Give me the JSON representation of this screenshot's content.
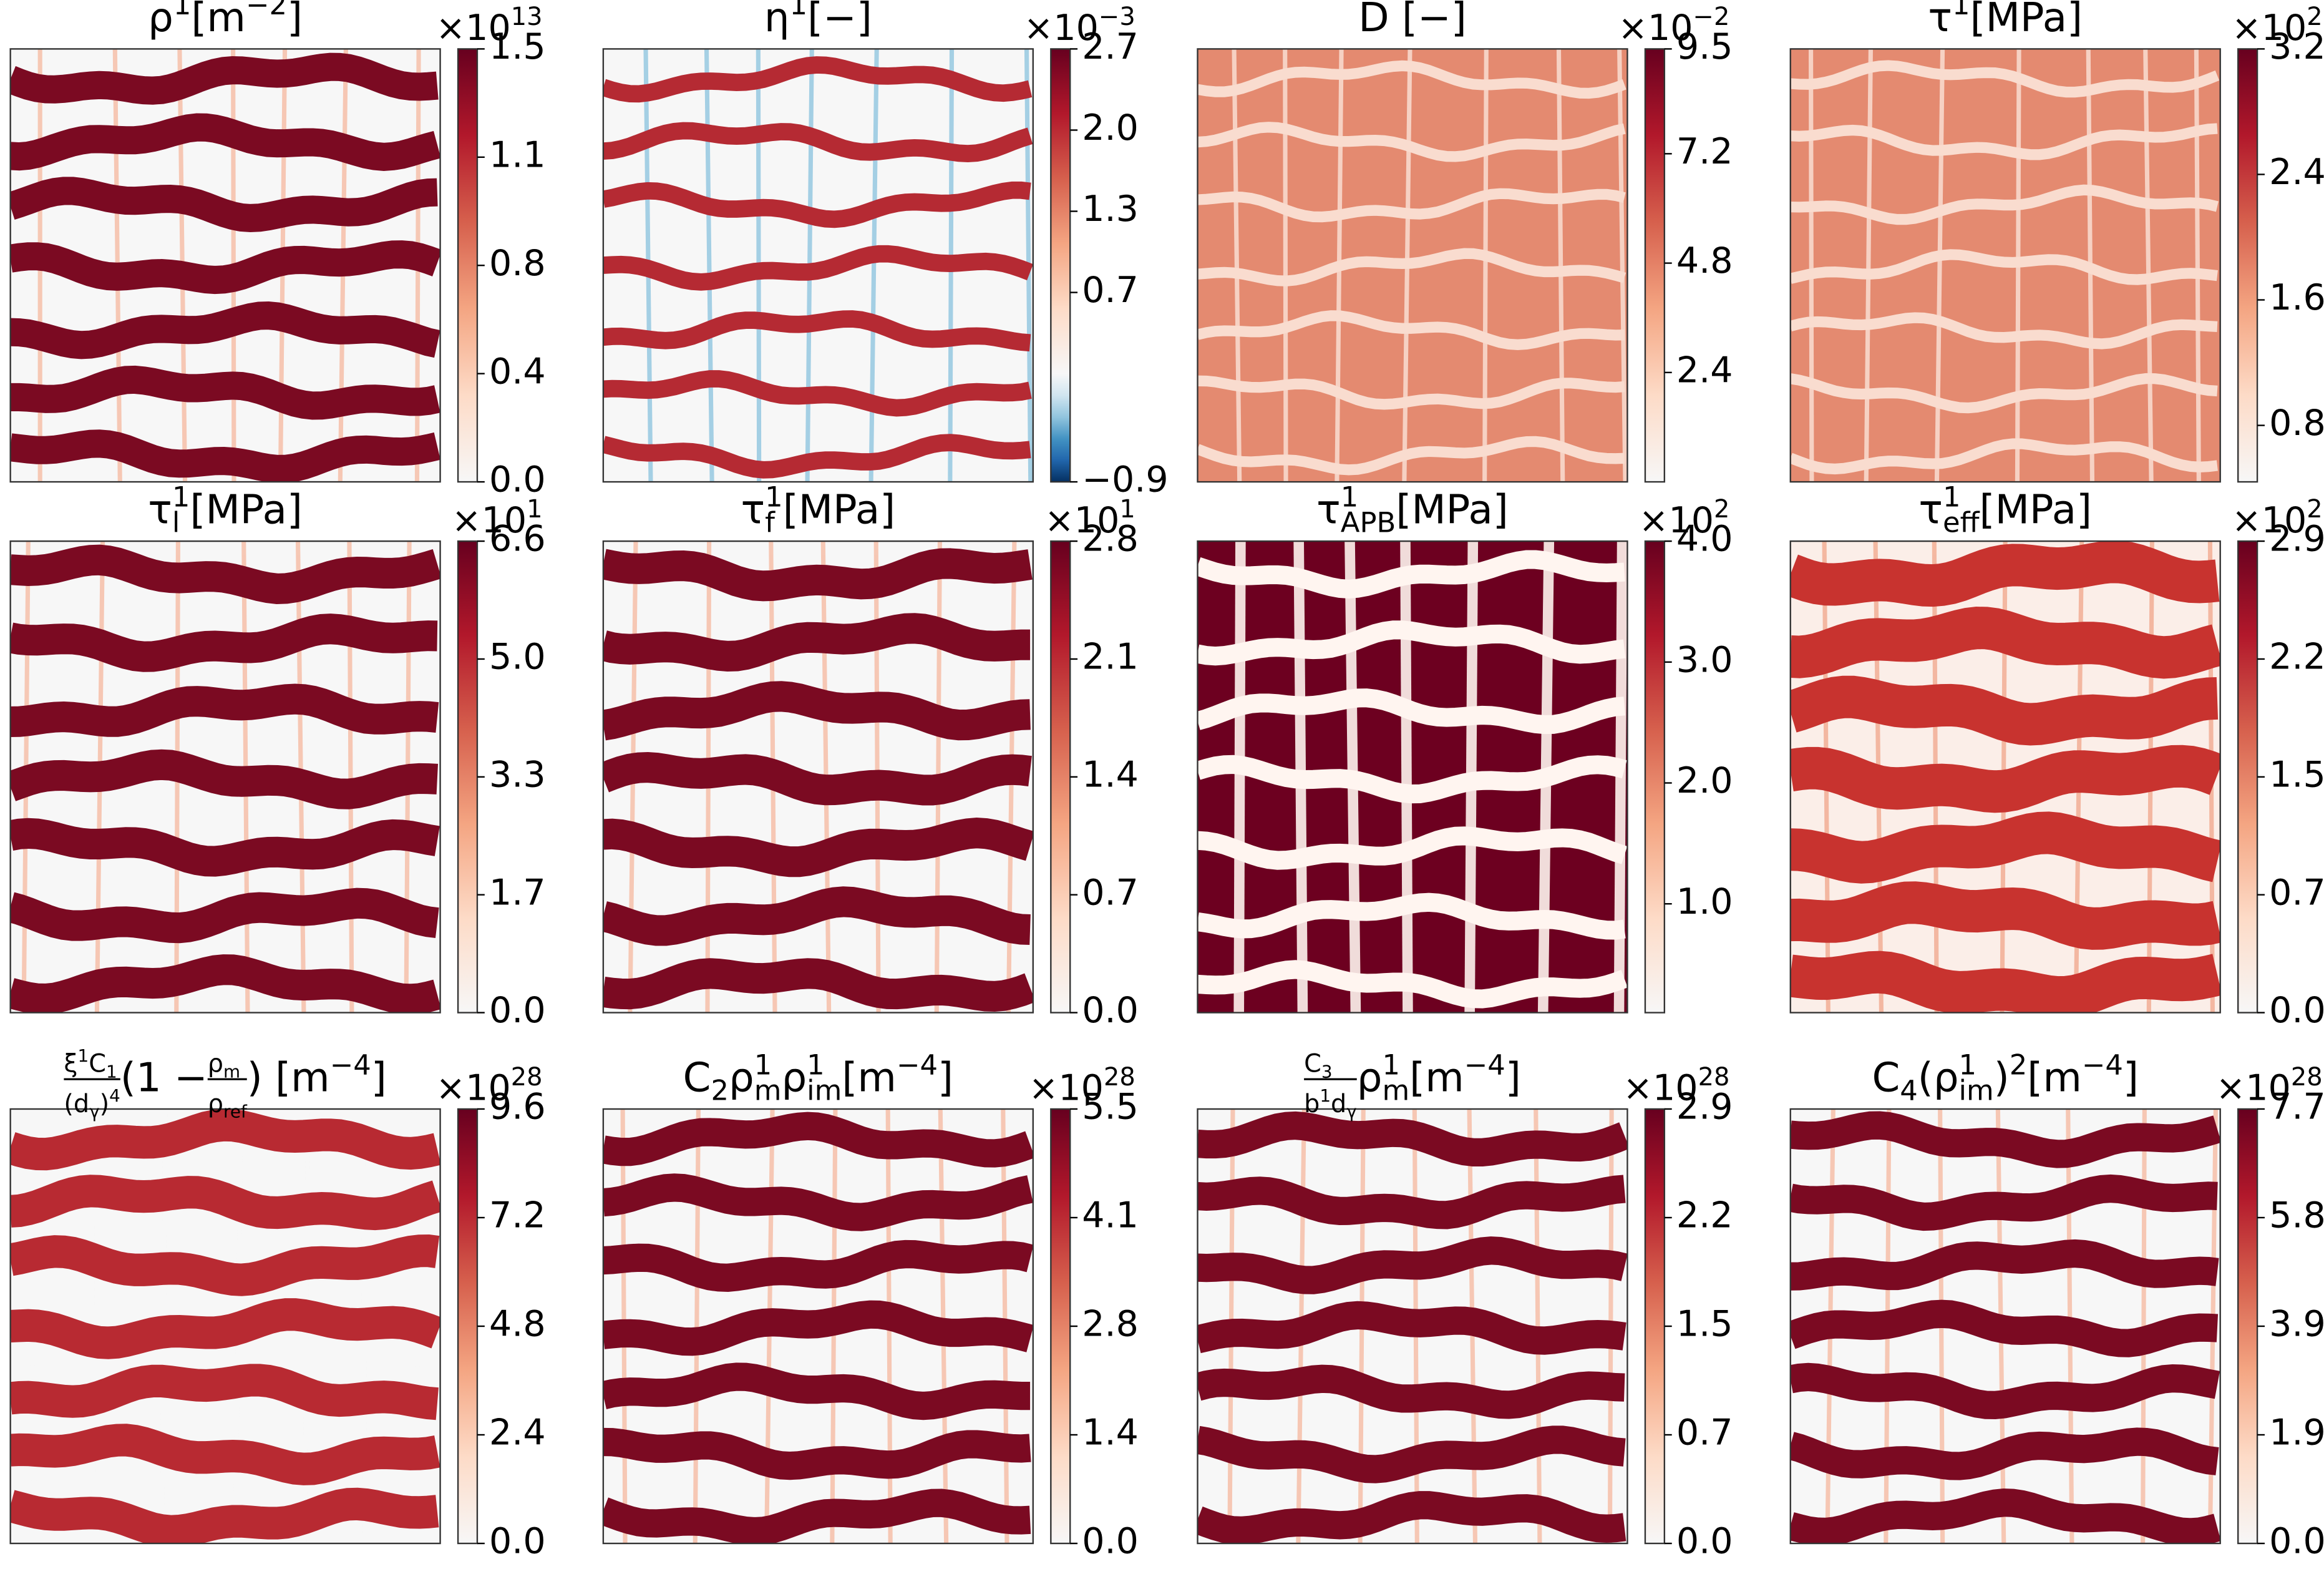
{
  "chart_data": [
    {
      "type": "heatmap",
      "colormap": "RdBu_r",
      "title": [
        {
          "text": "ρ"
        },
        {
          "text": "1",
          "pos": "sup"
        },
        {
          "text": " [m"
        },
        {
          "text": "−2",
          "pos": "sup"
        },
        {
          "text": "]"
        }
      ],
      "offset_text": [
        {
          "text": "×10"
        },
        {
          "text": "13",
          "pos": "sup"
        }
      ],
      "ylim": [
        0,
        1.5
      ],
      "yticks": [
        {
          "value": 0,
          "label": "0.0"
        },
        {
          "value": 0.375,
          "label": "0.4"
        },
        {
          "value": 0.75,
          "label": "0.8"
        },
        {
          "value": 1.125,
          "label": "1.1"
        },
        1.5
      ]
    },
    {
      "type": "heatmap",
      "colormap": "RdBu_r",
      "title": [
        {
          "text": "η"
        },
        {
          "text": "1",
          "pos": "sup"
        },
        {
          "text": " [−]"
        }
      ],
      "offset_text": [
        {
          "text": "×10"
        },
        {
          "text": "−3",
          "pos": "sup"
        }
      ],
      "ylim": [
        -0.9,
        2.7
      ],
      "yticks": [
        {
          "value": -0.9,
          "label": "−0.9"
        },
        {
          "value": 0.675,
          "label": "0.7"
        },
        {
          "value": 1.35,
          "label": "1.3"
        },
        {
          "value": 2.025,
          "label": "2.0"
        },
        2.7
      ]
    },
    {
      "type": "heatmap",
      "colormap": "RdBu_r",
      "title": [
        {
          "text": "D [−]"
        }
      ],
      "offset_text": [
        {
          "text": "×10"
        },
        {
          "text": "−2",
          "pos": "sup"
        }
      ],
      "ylim": [
        0,
        9.5
      ],
      "yticks": [
        2.4,
        4.8,
        7.2,
        9.5
      ]
    },
    {
      "type": "heatmap",
      "colormap": "RdBu_r",
      "title": [
        {
          "text": "τ"
        },
        {
          "text": "1",
          "pos": "sup"
        },
        {
          "text": " [MPa]"
        }
      ],
      "offset_text": [
        {
          "text": "×10"
        },
        {
          "text": "2",
          "pos": "sup"
        }
      ],
      "ylim": [
        0.44,
        3.2
      ],
      "yticks": [
        0.8,
        1.6,
        2.4,
        3.2
      ]
    },
    {
      "type": "heatmap",
      "colormap": "RdBu_r",
      "title": [
        {
          "text": "τ"
        },
        {
          "text": "1",
          "pos": "sup"
        },
        {
          "text": "l",
          "pos": "sub"
        },
        {
          "text": " [MPa]"
        }
      ],
      "offset_text": [
        {
          "text": "×10"
        },
        {
          "text": "1",
          "pos": "sup"
        }
      ],
      "ylim": [
        0,
        6.6
      ],
      "yticks": [
        {
          "value": 0,
          "label": "0.0"
        },
        {
          "value": 1.65,
          "label": "1.7"
        },
        3.3,
        {
          "value": 4.95,
          "label": "5.0"
        },
        6.6
      ]
    },
    {
      "type": "heatmap",
      "colormap": "RdBu_r",
      "title": [
        {
          "text": "τ"
        },
        {
          "text": "1",
          "pos": "sup"
        },
        {
          "text": "f",
          "pos": "sub"
        },
        {
          "text": " [MPa]"
        }
      ],
      "offset_text": [
        {
          "text": "×10"
        },
        {
          "text": "1",
          "pos": "sup"
        }
      ],
      "ylim": [
        0,
        2.8
      ],
      "yticks": [
        {
          "value": 0,
          "label": "0.0"
        },
        0.7,
        1.4,
        2.1,
        2.8
      ]
    },
    {
      "type": "heatmap",
      "colormap": "RdBu_r",
      "title": [
        {
          "text": "τ"
        },
        {
          "text": "1",
          "pos": "sup"
        },
        {
          "text": "APB",
          "pos": "sub"
        },
        {
          "text": " [MPa]"
        }
      ],
      "offset_text": [
        {
          "text": "×10"
        },
        {
          "text": "2",
          "pos": "sup"
        }
      ],
      "ylim": [
        0.1,
        4.0
      ],
      "yticks": [
        {
          "value": 1,
          "label": "1.0"
        },
        {
          "value": 2,
          "label": "2.0"
        },
        {
          "value": 3,
          "label": "3.0"
        },
        {
          "value": 4,
          "label": "4.0"
        }
      ]
    },
    {
      "type": "heatmap",
      "colormap": "RdBu_r",
      "title": [
        {
          "text": "τ"
        },
        {
          "text": "1",
          "pos": "sup"
        },
        {
          "text": "eff",
          "pos": "sub"
        },
        {
          "text": " [MPa]"
        }
      ],
      "offset_text": [
        {
          "text": "×10"
        },
        {
          "text": "2",
          "pos": "sup"
        }
      ],
      "ylim": [
        0,
        2.9
      ],
      "yticks": [
        {
          "value": 0,
          "label": "0.0"
        },
        {
          "value": 0.725,
          "label": "0.7"
        },
        {
          "value": 1.45,
          "label": "1.5"
        },
        {
          "value": 2.175,
          "label": "2.2"
        },
        2.9
      ]
    },
    {
      "type": "heatmap",
      "colormap": "RdBu_r",
      "title": [
        {
          "text": "ξ",
          "row": "num"
        },
        {
          "text": "1",
          "row": "num",
          "pos": "sup"
        },
        {
          "text": "C",
          "row": "num"
        },
        {
          "text": "1",
          "row": "num",
          "pos": "sub"
        },
        {
          "text": "(d",
          "row": "den"
        },
        {
          "text": "γ",
          "row": "den",
          "pos": "sub"
        },
        {
          "text": ")",
          "row": "den"
        },
        {
          "text": "4",
          "row": "den",
          "pos": "sup"
        },
        {
          "text": "(1 − "
        },
        {
          "text": "ρ",
          "row": "num"
        },
        {
          "text": "m",
          "row": "num",
          "pos": "sub"
        },
        {
          "text": "ρ",
          "row": "den"
        },
        {
          "text": "ref",
          "row": "den",
          "pos": "sub"
        },
        {
          "text": ") [m"
        },
        {
          "text": "−4",
          "pos": "sup"
        },
        {
          "text": "]"
        }
      ],
      "offset_text": [
        {
          "text": "×10"
        },
        {
          "text": "28",
          "pos": "sup"
        }
      ],
      "ylim": [
        0,
        9.6
      ],
      "yticks": [
        {
          "value": 0,
          "label": "0.0"
        },
        2.4,
        4.8,
        7.2,
        9.6
      ]
    },
    {
      "type": "heatmap",
      "colormap": "RdBu_r",
      "title": [
        {
          "text": "C"
        },
        {
          "text": "2",
          "pos": "sub"
        },
        {
          "text": "ρ"
        },
        {
          "text": "1",
          "pos": "sup"
        },
        {
          "text": "m",
          "pos": "sub"
        },
        {
          "text": "ρ"
        },
        {
          "text": "1",
          "pos": "sup"
        },
        {
          "text": "im",
          "pos": "sub"
        },
        {
          "text": " [m"
        },
        {
          "text": "−4",
          "pos": "sup"
        },
        {
          "text": "]"
        }
      ],
      "offset_text": [
        {
          "text": "×10"
        },
        {
          "text": "28",
          "pos": "sup"
        }
      ],
      "ylim": [
        0,
        5.5
      ],
      "yticks": [
        {
          "value": 0,
          "label": "0.0"
        },
        {
          "value": 1.375,
          "label": "1.4"
        },
        {
          "value": 2.75,
          "label": "2.8"
        },
        {
          "value": 4.125,
          "label": "4.1"
        },
        5.5
      ]
    },
    {
      "type": "heatmap",
      "colormap": "RdBu_r",
      "title": [
        {
          "text": "C",
          "row": "num"
        },
        {
          "text": "3",
          "row": "num",
          "pos": "sub"
        },
        {
          "text": "b",
          "row": "den"
        },
        {
          "text": "1",
          "row": "den",
          "pos": "sup"
        },
        {
          "text": "d",
          "row": "den"
        },
        {
          "text": "γ",
          "row": "den",
          "pos": "sub"
        },
        {
          "text": "ρ"
        },
        {
          "text": "1",
          "pos": "sup"
        },
        {
          "text": "m",
          "pos": "sub"
        },
        {
          "text": " [m"
        },
        {
          "text": "−4",
          "pos": "sup"
        },
        {
          "text": "]"
        }
      ],
      "offset_text": [
        {
          "text": "×10"
        },
        {
          "text": "28",
          "pos": "sup"
        }
      ],
      "ylim": [
        0,
        2.9
      ],
      "yticks": [
        {
          "value": 0,
          "label": "0.0"
        },
        {
          "value": 0.725,
          "label": "0.7"
        },
        {
          "value": 1.45,
          "label": "1.5"
        },
        {
          "value": 2.175,
          "label": "2.2"
        },
        2.9
      ]
    },
    {
      "type": "heatmap",
      "colormap": "RdBu_r",
      "title": [
        {
          "text": "C"
        },
        {
          "text": "4",
          "pos": "sub"
        },
        {
          "text": "(ρ"
        },
        {
          "text": "1",
          "pos": "sup"
        },
        {
          "text": "im",
          "pos": "sub"
        },
        {
          "text": ")"
        },
        {
          "text": "2",
          "pos": "sup"
        },
        {
          "text": " [m"
        },
        {
          "text": "−4",
          "pos": "sup"
        },
        {
          "text": "]"
        }
      ],
      "offset_text": [
        {
          "text": "×10"
        },
        {
          "text": "28",
          "pos": "sup"
        }
      ],
      "ylim": [
        0,
        7.7
      ],
      "yticks": [
        {
          "value": 0,
          "label": "0.0"
        },
        {
          "value": 1.925,
          "label": "1.9"
        },
        {
          "value": 3.85,
          "label": "3.9"
        },
        {
          "value": 5.775,
          "label": "5.8"
        },
        7.7
      ]
    }
  ]
}
